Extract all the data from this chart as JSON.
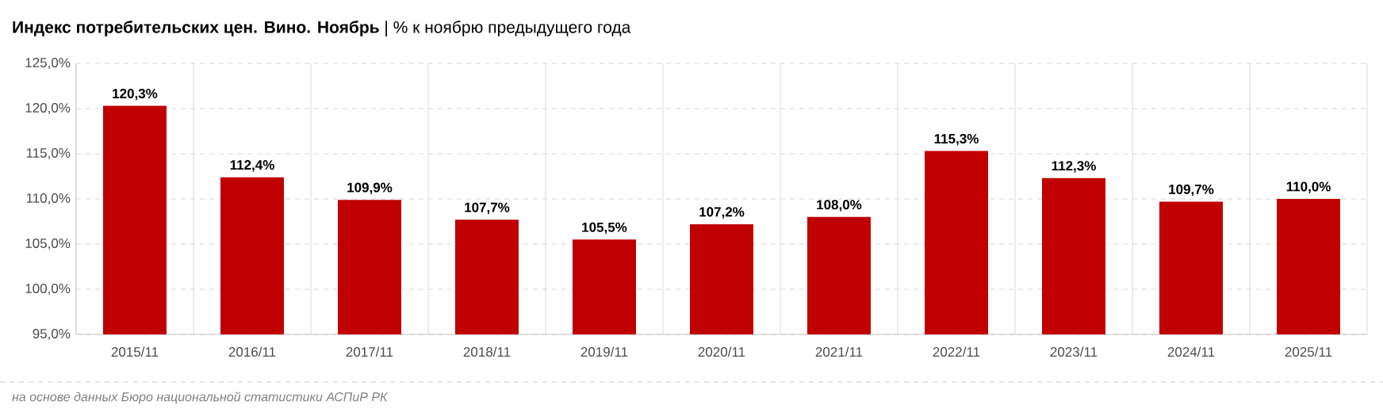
{
  "chart_data": {
    "type": "bar",
    "title": "**Индекс потребительских цен. Вино. Ноябрь** | % к ноябрю предыдущего года",
    "categories": [
      "2015/11",
      "2016/11",
      "2017/11",
      "2018/11",
      "2019/11",
      "2020/11",
      "2021/11",
      "2022/11",
      "2023/11",
      "2024/11",
      "2025/11"
    ],
    "values": [
      120.3,
      112.4,
      109.9,
      107.7,
      105.5,
      107.2,
      108.0,
      115.3,
      112.3,
      109.7,
      110.0
    ],
    "value_labels": [
      "120,3%",
      "112,4%",
      "109,9%",
      "107,7%",
      "105,5%",
      "107,2%",
      "108,0%",
      "115,3%",
      "112,3%",
      "109,7%",
      "110,0%"
    ],
    "color": "#c00000",
    "ylim": [
      95,
      125
    ],
    "yticks": [
      {
        "value": 95,
        "label": "95,0%"
      },
      {
        "value": 100,
        "label": "100,0%"
      },
      {
        "value": 105,
        "label": "105,0%"
      },
      {
        "value": 110,
        "label": "110,0%"
      },
      {
        "value": 115,
        "label": "115,0%"
      },
      {
        "value": 120,
        "label": "120,0%"
      },
      {
        "value": 125,
        "label": "125,0%"
      }
    ],
    "grid": true,
    "annotations": [
      "на основе данных Бюро национальной статистики АСПиР РК"
    ]
  }
}
